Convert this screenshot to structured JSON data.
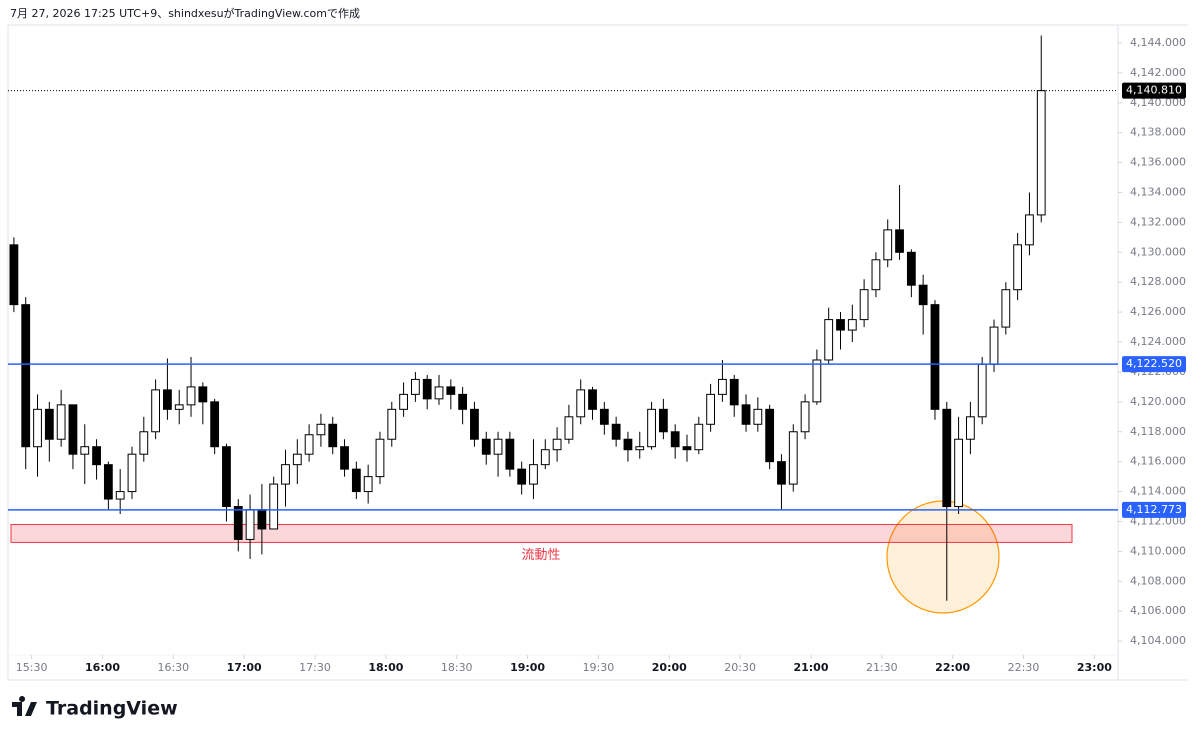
{
  "header": "7月 27, 2026 17:25 UTC+9、shindxesuがTradingView.comで作成",
  "brand": "TradingView",
  "chart_data": {
    "type": "candlestick",
    "up_color": "#ffffff",
    "down_color": "#000000",
    "wick_color": "#000000",
    "xlim": [
      "15:20",
      "23:10"
    ],
    "xticks": [
      "15:30",
      "16:00",
      "16:30",
      "17:00",
      "17:30",
      "18:00",
      "18:30",
      "19:00",
      "19:30",
      "20:00",
      "20:30",
      "21:00",
      "21:30",
      "22:00",
      "22:30",
      "23:00"
    ],
    "ylim": [
      4101.4,
      4145.2
    ],
    "yticks": [
      {
        "value": 4104,
        "label": "4,104.000"
      },
      {
        "value": 4106,
        "label": "4,106.000"
      },
      {
        "value": 4108,
        "label": "4,108.000"
      },
      {
        "value": 4110,
        "label": "4,110.000"
      },
      {
        "value": 4112,
        "label": "4,112.000"
      },
      {
        "value": 4114,
        "label": "4,114.000"
      },
      {
        "value": 4116,
        "label": "4,116.000"
      },
      {
        "value": 4118,
        "label": "4,118.000"
      },
      {
        "value": 4120,
        "label": "4,120.000"
      },
      {
        "value": 4122,
        "label": "4,122.000"
      },
      {
        "value": 4124,
        "label": "4,124.000"
      },
      {
        "value": 4126,
        "label": "4,126.000"
      },
      {
        "value": 4128,
        "label": "4,128.000"
      },
      {
        "value": 4130,
        "label": "4,130.000"
      },
      {
        "value": 4132,
        "label": "4,132.000"
      },
      {
        "value": 4134,
        "label": "4,134.000"
      },
      {
        "value": 4136,
        "label": "4,136.000"
      },
      {
        "value": 4138,
        "label": "4,138.000"
      },
      {
        "value": 4140,
        "label": "4,140.000"
      },
      {
        "value": 4142,
        "label": "4,142.000"
      },
      {
        "value": 4144,
        "label": "4,144.000"
      }
    ],
    "x": [
      "15:20",
      "15:25",
      "15:30",
      "15:35",
      "15:40",
      "15:45",
      "15:50",
      "15:55",
      "16:00",
      "16:05",
      "16:10",
      "16:15",
      "16:20",
      "16:25",
      "16:30",
      "16:35",
      "16:40",
      "16:45",
      "16:50",
      "16:55",
      "17:00",
      "17:05",
      "17:10",
      "17:15",
      "17:20",
      "17:25",
      "17:30",
      "17:35",
      "17:40",
      "17:45",
      "17:50",
      "17:55",
      "18:00",
      "18:05",
      "18:10",
      "18:15",
      "18:20",
      "18:25",
      "18:30",
      "18:35",
      "18:40",
      "18:45",
      "18:50",
      "18:55",
      "19:00",
      "19:05",
      "19:10",
      "19:15",
      "19:20",
      "19:25",
      "19:30",
      "19:35",
      "19:40",
      "19:45",
      "19:50",
      "19:55",
      "20:00",
      "20:05",
      "20:10",
      "20:15",
      "20:20",
      "20:25",
      "20:30",
      "20:35",
      "20:40",
      "20:45",
      "20:50",
      "20:55",
      "21:00",
      "21:05",
      "21:10",
      "21:15",
      "21:20",
      "21:25",
      "21:30",
      "21:35",
      "21:40",
      "21:45",
      "21:50",
      "21:55",
      "22:00",
      "22:05",
      "22:10",
      "22:15",
      "22:20",
      "22:25",
      "22:30",
      "22:35"
    ],
    "open": [
      4130.5,
      4126.5,
      4117,
      4119.5,
      4117.5,
      4119.8,
      4116.5,
      4117,
      4115.8,
      4113.5,
      4114,
      4116.5,
      4118,
      4120.8,
      4119.5,
      4119.8,
      4121,
      4120,
      4117,
      4113,
      4110.8,
      4112.8,
      4111.5,
      4114.5,
      4115.8,
      4116.5,
      4117.8,
      4118.5,
      4117,
      4115.5,
      4114,
      4115,
      4117.5,
      4119.5,
      4120.5,
      4121.5,
      4120.2,
      4121,
      4120.5,
      4119.5,
      4117.5,
      4116.5,
      4117.5,
      4115.5,
      4114.5,
      4115.8,
      4116.8,
      4117.5,
      4119,
      4120.8,
      4119.5,
      4118.5,
      4117.5,
      4116.8,
      4117,
      4119.5,
      4118,
      4117,
      4116.8,
      4118.5,
      4120.5,
      4121.5,
      4119.8,
      4118.5,
      4119.5,
      4116,
      4114.5,
      4118,
      4120,
      4122.8,
      4125.5,
      4124.8,
      4125.5,
      4127.5,
      4129.5,
      4131.5,
      4130,
      4127.8,
      4126.5,
      4119.5,
      4113,
      4117.5,
      4119,
      4122.5,
      4125,
      4127.5,
      4130.5,
      4132.5
    ],
    "high": [
      4131,
      4127,
      4120.5,
      4120,
      4120.8,
      4119.5,
      4118.5,
      4117.5,
      4116,
      4115.5,
      4117,
      4119,
      4121.5,
      4122.9,
      4120.8,
      4123,
      4121.3,
      4120.2,
      4117.2,
      4113.5,
      4113.8,
      4114.5,
      4115,
      4116.8,
      4117.5,
      4118.5,
      4119.2,
      4119,
      4117.5,
      4116,
      4115.8,
      4118,
      4120,
      4121.3,
      4122,
      4121.8,
      4121.8,
      4121.5,
      4121,
      4120,
      4118,
      4118,
      4118,
      4116,
      4117.5,
      4117.5,
      4118.3,
      4119.8,
      4121.5,
      4121,
      4120,
      4119,
      4118,
      4118,
      4120,
      4120.2,
      4118.5,
      4117.8,
      4119,
      4121.2,
      4122.8,
      4121.8,
      4120.5,
      4120.3,
      4119.8,
      4116.5,
      4118.5,
      4120.5,
      4123.5,
      4126.3,
      4126,
      4126.5,
      4128.2,
      4130,
      4132.2,
      4134.5,
      4130.2,
      4128.5,
      4126.8,
      4120,
      4119,
      4120,
      4123,
      4125.5,
      4128,
      4131.3,
      4134,
      4144.5
    ],
    "low": [
      4126,
      4115.5,
      4115,
      4116,
      4117,
      4115.5,
      4114.5,
      4114.8,
      4112.8,
      4112.5,
      4113.5,
      4116,
      4117.5,
      4118.8,
      4118.5,
      4119,
      4118.5,
      4116.5,
      4112,
      4110,
      4109.5,
      4109.8,
      4111.5,
      4113,
      4114.5,
      4116,
      4117,
      4116.5,
      4115,
      4113.5,
      4113.2,
      4114.5,
      4117,
      4119,
      4120,
      4119.5,
      4119.8,
      4119.5,
      4118.5,
      4117,
      4115.8,
      4115,
      4115,
      4113.8,
      4113.5,
      4115.5,
      4116,
      4117.2,
      4118.5,
      4118.8,
      4117.8,
      4117,
      4116,
      4116.2,
      4116.8,
      4117.5,
      4116.2,
      4116,
      4116.5,
      4118,
      4120,
      4119,
      4118,
      4118,
      4115.5,
      4112.8,
      4114,
      4117.5,
      4119.8,
      4122.5,
      4123.5,
      4124,
      4125,
      4127,
      4129,
      4129.5,
      4127,
      4124.5,
      4118.8,
      4106.7,
      4112.5,
      4116.5,
      4118.5,
      4122,
      4124.5,
      4126.8,
      4129.8,
      4132
    ],
    "close": [
      4126.5,
      4117,
      4119.5,
      4117.5,
      4119.8,
      4116.5,
      4117,
      4115.8,
      4113.5,
      4114,
      4116.5,
      4118,
      4120.8,
      4119.5,
      4119.8,
      4121,
      4120,
      4117,
      4113,
      4110.8,
      4112.8,
      4111.5,
      4114.5,
      4115.8,
      4116.5,
      4117.8,
      4118.5,
      4117,
      4115.5,
      4114,
      4115,
      4117.5,
      4119.5,
      4120.5,
      4121.5,
      4120.2,
      4121,
      4120.5,
      4119.5,
      4117.5,
      4116.5,
      4117.5,
      4115.5,
      4114.5,
      4115.8,
      4116.8,
      4117.5,
      4119,
      4120.8,
      4119.5,
      4118.5,
      4117.5,
      4116.8,
      4117,
      4119.5,
      4118,
      4117,
      4116.8,
      4118.5,
      4120.5,
      4121.5,
      4119.8,
      4118.5,
      4119.5,
      4116,
      4114.5,
      4118,
      4120,
      4122.8,
      4125.5,
      4124.8,
      4125.5,
      4127.5,
      4129.5,
      4131.5,
      4130,
      4127.8,
      4126.5,
      4119.5,
      4113,
      4117.5,
      4119,
      4122.5,
      4125,
      4127.5,
      4130.5,
      4132.5,
      4140.81
    ],
    "hlines": [
      {
        "value": 4122.52,
        "label": "4,122.520",
        "color": "#2962ff"
      },
      {
        "value": 4112.773,
        "label": "4,112.773",
        "color": "#2962ff"
      }
    ],
    "last_price": {
      "value": 4140.81,
      "label": "4,140.810",
      "color": "#000000"
    },
    "zone": {
      "low": 4110.6,
      "high": 4111.8,
      "label": "流動性",
      "color": "#f23645"
    }
  }
}
